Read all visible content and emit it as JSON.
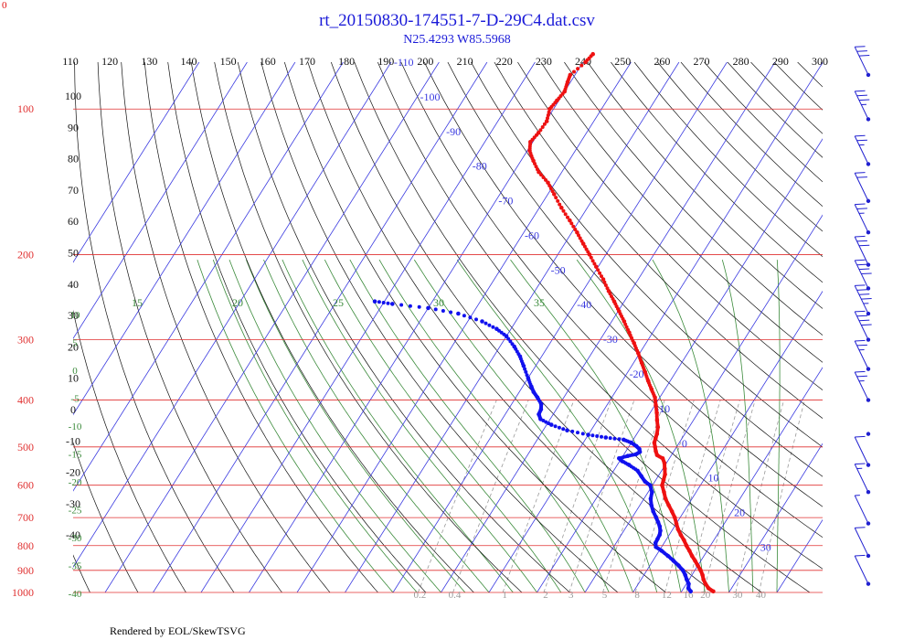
{
  "header": {
    "title": "rt_20150830-174551-7-D-29C4.dat.csv",
    "subtitle": "N25.4293 W85.5968",
    "corner_label": "0",
    "footer": "Rendered by EOL/SkewTSVG"
  },
  "colors": {
    "title": "#1a1ad8",
    "temperature": "#ee1111",
    "dewpoint": "#1111ee",
    "isobar": "#e03030",
    "isotherm": "#3a3ae0",
    "dry_adiabat": "#111111",
    "moist_adiabat": "#3a8a3a",
    "mixing_ratio": "#999999",
    "wind_barb": "#2020d0"
  },
  "chart_data": {
    "type": "skew-t",
    "title": "rt_20150830-174551-7-D-29C4.dat.csv",
    "subtitle": "N25.4293 W85.5968",
    "ylim": [
      1000,
      80
    ],
    "pressure_labels": [
      "100",
      "200",
      "300",
      "400",
      "500",
      "600",
      "700",
      "800",
      "900",
      "1000"
    ],
    "pressure_values": [
      100,
      200,
      300,
      400,
      500,
      600,
      700,
      800,
      900,
      1000
    ],
    "top_theta_labels": [
      "110",
      "120",
      "130",
      "140",
      "150",
      "160",
      "170",
      "180",
      "190",
      "200",
      "210",
      "220",
      "230",
      "240",
      "250",
      "260",
      "270",
      "280",
      "290",
      "300"
    ],
    "left_theta_labels": [
      "100",
      "90",
      "80",
      "70",
      "60",
      "50",
      "40",
      "30",
      "20",
      "10",
      "0",
      "-10",
      "-20",
      "-30",
      "-40"
    ],
    "isotherm_labels": [
      "-110",
      "-100",
      "-90",
      "-80",
      "-70",
      "-60",
      "-50",
      "-40",
      "-30",
      "-20",
      "-10",
      "0",
      "10",
      "20",
      "30"
    ],
    "moist_labels_top": [
      "15",
      "20",
      "25",
      "30",
      "35"
    ],
    "moist_labels_left": [
      "10",
      "5",
      "0",
      "-5",
      "-10",
      "-15",
      "-20",
      "-25",
      "-30",
      "-35",
      "-40"
    ],
    "mixing_ratio_labels": [
      "0.2",
      "0.4",
      "1",
      "2",
      "3",
      "5",
      "8",
      "12",
      "16",
      "20",
      "30",
      "40"
    ],
    "mixing_ratio_values": [
      0.2,
      0.4,
      1,
      2,
      3,
      5,
      8,
      12,
      16,
      20,
      30,
      40
    ],
    "series": [
      {
        "name": "temperature",
        "points": [
          [
            995,
            26.6
          ],
          [
            980,
            25.2
          ],
          [
            960,
            24.0
          ],
          [
            940,
            23.0
          ],
          [
            920,
            22.2
          ],
          [
            900,
            21.2
          ],
          [
            880,
            20.0
          ],
          [
            860,
            18.8
          ],
          [
            840,
            17.5
          ],
          [
            820,
            16.3
          ],
          [
            800,
            15.0
          ],
          [
            780,
            13.8
          ],
          [
            760,
            12.4
          ],
          [
            740,
            11.1
          ],
          [
            720,
            10.0
          ],
          [
            700,
            8.9
          ],
          [
            680,
            7.5
          ],
          [
            660,
            6.0
          ],
          [
            640,
            4.5
          ],
          [
            620,
            3.3
          ],
          [
            600,
            2.0
          ],
          [
            585,
            1.6
          ],
          [
            570,
            1.2
          ],
          [
            555,
            0.4
          ],
          [
            540,
            -0.4
          ],
          [
            528,
            -1.4
          ],
          [
            520,
            -3.0
          ],
          [
            510,
            -3.8
          ],
          [
            500,
            -4.5
          ],
          [
            490,
            -5.2
          ],
          [
            480,
            -5.5
          ],
          [
            470,
            -5.8
          ],
          [
            455,
            -6.5
          ],
          [
            440,
            -7.6
          ],
          [
            425,
            -8.6
          ],
          [
            410,
            -9.8
          ],
          [
            395,
            -11.0
          ],
          [
            380,
            -12.8
          ],
          [
            365,
            -14.6
          ],
          [
            350,
            -16.4
          ],
          [
            335,
            -18.3
          ],
          [
            320,
            -20.3
          ],
          [
            305,
            -22.5
          ],
          [
            290,
            -24.9
          ],
          [
            275,
            -27.4
          ],
          [
            262,
            -29.8
          ],
          [
            250,
            -32.1
          ],
          [
            238,
            -34.6
          ],
          [
            225,
            -37.3
          ],
          [
            212,
            -40.4
          ],
          [
            200,
            -43.4
          ],
          [
            190,
            -46.1
          ],
          [
            180,
            -48.9
          ],
          [
            170,
            -52.0
          ],
          [
            160,
            -55.4
          ],
          [
            150,
            -58.7
          ],
          [
            142,
            -61.5
          ],
          [
            135,
            -64.8
          ],
          [
            128,
            -67.4
          ],
          [
            122,
            -69.5
          ],
          [
            117,
            -70.5
          ],
          [
            112,
            -70.0
          ],
          [
            106,
            -69.8
          ],
          [
            100,
            -70.8
          ],
          [
            96,
            -70.4
          ],
          [
            92,
            -70.0
          ],
          [
            88,
            -70.6
          ],
          [
            85,
            -71.0
          ],
          [
            80,
            -69.5
          ],
          [
            77,
            -69.0
          ]
        ]
      },
      {
        "name": "dewpoint",
        "points": [
          [
            995,
            21.9
          ],
          [
            980,
            21.0
          ],
          [
            960,
            20.5
          ],
          [
            940,
            19.5
          ],
          [
            920,
            18.6
          ],
          [
            900,
            17.5
          ],
          [
            880,
            16.0
          ],
          [
            860,
            14.3
          ],
          [
            840,
            12.5
          ],
          [
            820,
            10.5
          ],
          [
            805,
            8.8
          ],
          [
            790,
            8.2
          ],
          [
            775,
            8.1
          ],
          [
            760,
            8.0
          ],
          [
            745,
            7.6
          ],
          [
            730,
            6.9
          ],
          [
            715,
            6.0
          ],
          [
            700,
            5.0
          ],
          [
            680,
            3.6
          ],
          [
            660,
            2.4
          ],
          [
            640,
            1.4
          ],
          [
            620,
            0.8
          ],
          [
            600,
            -0.5
          ],
          [
            590,
            -2.0
          ],
          [
            575,
            -3.5
          ],
          [
            560,
            -5.0
          ],
          [
            545,
            -7.5
          ],
          [
            535,
            -9.5
          ],
          [
            528,
            -10.5
          ],
          [
            522,
            -9.0
          ],
          [
            518,
            -7.5
          ],
          [
            512,
            -7.0
          ],
          [
            505,
            -7.5
          ],
          [
            498,
            -8.5
          ],
          [
            490,
            -10.0
          ],
          [
            483,
            -12.0
          ],
          [
            478,
            -16.0
          ],
          [
            472,
            -20.0
          ],
          [
            462,
            -25.0
          ],
          [
            450,
            -29.0
          ],
          [
            438,
            -32.0
          ],
          [
            428,
            -33.0
          ],
          [
            418,
            -33.2
          ],
          [
            408,
            -33.8
          ],
          [
            395,
            -35.5
          ],
          [
            385,
            -37.0
          ],
          [
            375,
            -38.2
          ],
          [
            360,
            -40.0
          ],
          [
            340,
            -42.5
          ],
          [
            325,
            -44.5
          ],
          [
            310,
            -47.0
          ],
          [
            295,
            -50.0
          ],
          [
            285,
            -53.0
          ],
          [
            275,
            -57.0
          ],
          [
            265,
            -63.0
          ],
          [
            258,
            -70.0
          ],
          [
            253,
            -78.0
          ],
          [
            250,
            -82.0
          ]
        ]
      }
    ],
    "wind_barbs": [
      {
        "pressure": 85,
        "speed_kt": 30
      },
      {
        "pressure": 105,
        "speed_kt": 35
      },
      {
        "pressure": 130,
        "speed_kt": 25
      },
      {
        "pressure": 155,
        "speed_kt": 20
      },
      {
        "pressure": 180,
        "speed_kt": 25
      },
      {
        "pressure": 210,
        "speed_kt": 30
      },
      {
        "pressure": 235,
        "speed_kt": 40
      },
      {
        "pressure": 265,
        "speed_kt": 45
      },
      {
        "pressure": 300,
        "speed_kt": 40
      },
      {
        "pressure": 345,
        "speed_kt": 25
      },
      {
        "pressure": 400,
        "speed_kt": 25
      },
      {
        "pressure": 470,
        "speed_kt": 0
      },
      {
        "pressure": 545,
        "speed_kt": 10
      },
      {
        "pressure": 620,
        "speed_kt": 15
      },
      {
        "pressure": 720,
        "speed_kt": 5
      },
      {
        "pressure": 840,
        "speed_kt": 10
      },
      {
        "pressure": 960,
        "speed_kt": 10
      }
    ]
  }
}
